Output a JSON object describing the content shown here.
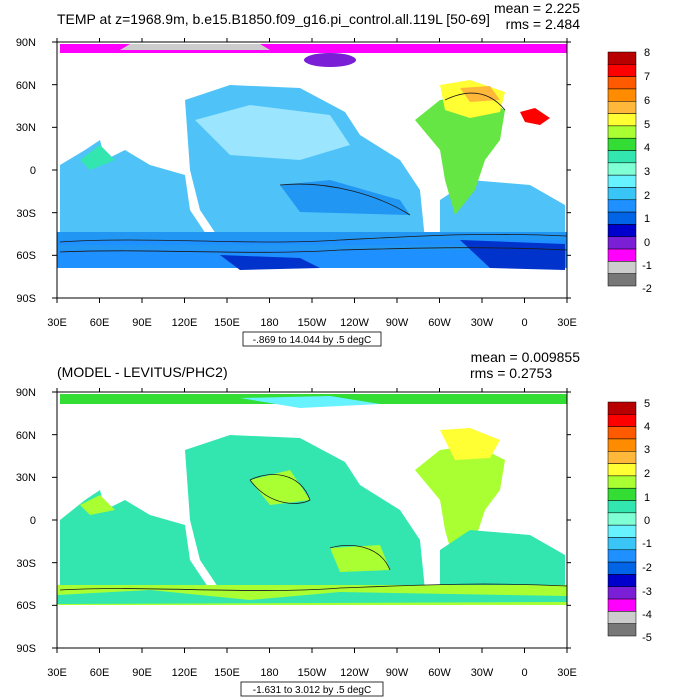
{
  "colors": {
    "land": "#ffffff",
    "frame": "#000000",
    "contour": "#1a1a1a",
    "top_ocean": [
      "#4fc3f7",
      "#7ee0f2",
      "#2196f3",
      "#9be5ff"
    ],
    "top_cold": "#0033cc",
    "top_warm": "#ffff33",
    "top_mid": "#66e644",
    "bottom_ocean": [
      "#33e6c4",
      "#66ff66",
      "#7fffd4"
    ],
    "bottom_warm": "#ffff33",
    "bottom_cool": "#4ec6ff"
  },
  "chart_data": [
    {
      "type": "heatmap",
      "title": "TEMP at z=1968.9m, b.e15.B1850.f09_g16.pi_control.all.119L [50-69]",
      "stats": {
        "mean": "mean = 2.225",
        "rms": "rms = 2.484"
      },
      "ylabels": [
        "90N",
        "60N",
        "30N",
        "0",
        "30S",
        "60S",
        "90S"
      ],
      "xlabels": [
        "30E",
        "60E",
        "90E",
        "120E",
        "150E",
        "180",
        "150W",
        "120W",
        "90W",
        "60W",
        "30W",
        "0",
        "30E"
      ],
      "contour_label": "-.869 to 14.044 by .5 degC",
      "colorbar": {
        "labels": [
          "8",
          "7",
          "6",
          "5",
          "4",
          "3",
          "2",
          "1",
          "0",
          "-1",
          "-2"
        ],
        "colors": [
          "#b80000",
          "#ff0000",
          "#ff5a00",
          "#ff8c00",
          "#ffb83a",
          "#ffff33",
          "#aaff33",
          "#33dd33",
          "#33e6b0",
          "#7fffd4",
          "#66f2ff",
          "#39c6f7",
          "#1e90ff",
          "#0064e6",
          "#0000cc",
          "#7a1fd6",
          "#ff00ff",
          "#cccccc",
          "#777777"
        ]
      }
    },
    {
      "type": "heatmap",
      "title": "(MODEL - LEVITUS/PHC2)",
      "stats": {
        "mean": "mean = 0.009855",
        "rms": "rms = 0.2753"
      },
      "ylabels": [
        "90N",
        "60N",
        "30N",
        "0",
        "30S",
        "60S",
        "90S"
      ],
      "xlabels": [
        "30E",
        "60E",
        "90E",
        "120E",
        "150E",
        "180",
        "150W",
        "120W",
        "90W",
        "60W",
        "30W",
        "0",
        "30E"
      ],
      "contour_label": "-1.631 to 3.012 by .5 degC",
      "colorbar": {
        "labels": [
          "5",
          "4",
          "3",
          "2",
          "1",
          "0",
          "-1",
          "-2",
          "-3",
          "-4",
          "-5"
        ],
        "colors": [
          "#b80000",
          "#ff0000",
          "#ff5a00",
          "#ff8c00",
          "#ffb83a",
          "#ffff33",
          "#aaff33",
          "#33dd33",
          "#33e6b0",
          "#7fffd4",
          "#66f2ff",
          "#39c6f7",
          "#1e90ff",
          "#0064e6",
          "#0000cc",
          "#7a1fd6",
          "#ff00ff",
          "#cccccc",
          "#777777"
        ]
      }
    }
  ]
}
